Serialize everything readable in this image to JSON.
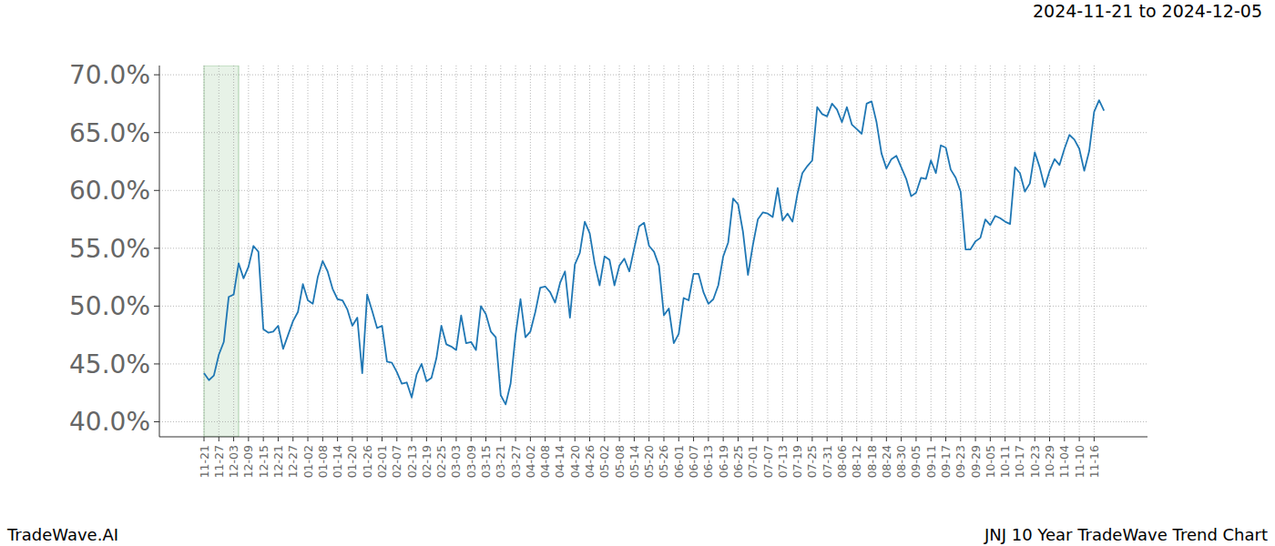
{
  "chart_data": {
    "type": "line",
    "title": "JNJ 10 Year TradeWave Trend Chart",
    "subtitle": "2024-11-21 to 2024-12-05",
    "source": "TradeWave.AI",
    "color": "#1f77b4",
    "grid": true,
    "highlight": [
      0,
      7
    ],
    "ylim": [
      38.7,
      70.8
    ],
    "yticks": [
      {
        "value": 40,
        "label": "40.0%"
      },
      {
        "value": 45,
        "label": "45.0%"
      },
      {
        "value": 50,
        "label": "50.0%"
      },
      {
        "value": 55,
        "label": "55.0%"
      },
      {
        "value": 60,
        "label": "60.0%"
      },
      {
        "value": 65,
        "label": "65.0%"
      },
      {
        "value": 70,
        "label": "70.0%"
      }
    ],
    "categories": [
      "11-21",
      null,
      null,
      "11-27",
      null,
      null,
      "12-03",
      null,
      null,
      "12-09",
      null,
      null,
      "12-15",
      null,
      null,
      "12-21",
      null,
      null,
      "12-27",
      null,
      null,
      "01-02",
      null,
      null,
      "01-08",
      null,
      null,
      "01-14",
      null,
      null,
      "01-20",
      null,
      null,
      "01-26",
      null,
      null,
      "02-01",
      null,
      null,
      "02-07",
      null,
      null,
      "02-13",
      null,
      null,
      "02-19",
      null,
      null,
      "02-25",
      null,
      null,
      "03-03",
      null,
      null,
      "03-09",
      null,
      null,
      "03-15",
      null,
      null,
      "03-21",
      null,
      null,
      "03-27",
      null,
      null,
      "04-02",
      null,
      null,
      "04-08",
      null,
      null,
      "04-14",
      null,
      null,
      "04-20",
      null,
      null,
      "04-26",
      null,
      null,
      "05-02",
      null,
      null,
      "05-08",
      null,
      null,
      "05-14",
      null,
      null,
      "05-20",
      null,
      null,
      "05-26",
      null,
      null,
      "06-01",
      null,
      null,
      "06-07",
      null,
      null,
      "06-13",
      null,
      null,
      "06-19",
      null,
      null,
      "06-25",
      null,
      null,
      "07-01",
      null,
      null,
      "07-07",
      null,
      null,
      "07-13",
      null,
      null,
      "07-19",
      null,
      null,
      "07-25",
      null,
      null,
      "07-31",
      null,
      null,
      "08-06",
      null,
      null,
      "08-12",
      null,
      null,
      "08-18",
      null,
      null,
      "08-24",
      null,
      null,
      "08-30",
      null,
      null,
      "09-05",
      null,
      null,
      "09-11",
      null,
      null,
      "09-17",
      null,
      null,
      "09-23",
      null,
      null,
      "09-29",
      null,
      null,
      "10-05",
      null,
      null,
      "10-11",
      null,
      null,
      "10-17",
      null,
      null,
      "10-23",
      null,
      null,
      "10-29",
      null,
      null,
      "11-04",
      null,
      null,
      "11-10",
      null,
      null,
      "11-16",
      null,
      null
    ],
    "values": [
      44.2,
      43.6,
      44.0,
      45.8,
      46.9,
      50.8,
      51.0,
      53.7,
      52.4,
      53.4,
      55.2,
      54.7,
      48.0,
      47.7,
      47.8,
      48.3,
      46.3,
      47.5,
      48.7,
      49.5,
      51.9,
      50.5,
      50.2,
      52.5,
      53.9,
      53.0,
      51.5,
      50.6,
      50.5,
      49.7,
      48.3,
      49.0,
      44.2,
      51.0,
      49.6,
      48.1,
      48.3,
      45.2,
      45.1,
      44.3,
      43.3,
      43.4,
      42.1,
      44.1,
      45.0,
      43.5,
      43.8,
      45.5,
      48.3,
      46.7,
      46.5,
      46.2,
      49.2,
      46.8,
      46.9,
      46.2,
      50.0,
      49.3,
      47.8,
      47.3,
      42.3,
      41.5,
      43.3,
      47.5,
      50.6,
      47.3,
      47.8,
      49.5,
      51.6,
      51.7,
      51.2,
      50.3,
      52.0,
      53.0,
      49.0,
      53.6,
      54.6,
      57.3,
      56.3,
      53.7,
      51.8,
      54.3,
      54.0,
      51.8,
      53.5,
      54.1,
      53.0,
      55.0,
      56.9,
      57.2,
      55.2,
      54.7,
      53.5,
      49.2,
      49.8,
      46.8,
      47.6,
      50.7,
      50.5,
      52.8,
      52.8,
      51.2,
      50.2,
      50.6,
      51.8,
      54.3,
      55.5,
      59.3,
      58.8,
      56.4,
      52.7,
      55.3,
      57.5,
      58.1,
      58.0,
      57.7,
      60.2,
      57.4,
      58.0,
      57.3,
      59.7,
      61.5,
      62.1,
      62.6,
      67.2,
      66.6,
      66.4,
      67.5,
      67.0,
      65.9,
      67.2,
      65.7,
      65.3,
      64.9,
      67.5,
      67.7,
      65.9,
      63.2,
      61.9,
      62.7,
      63.0,
      62.0,
      61.0,
      59.5,
      59.8,
      61.1,
      61.0,
      62.6,
      61.5,
      63.9,
      63.7,
      61.8,
      61.1,
      59.9,
      54.9,
      54.9,
      55.6,
      55.9,
      57.5,
      57.0,
      57.8,
      57.6,
      57.3,
      57.1,
      62.0,
      61.5,
      59.9,
      60.6,
      63.3,
      62.0,
      60.3,
      61.7,
      62.7,
      62.2,
      63.6,
      64.8,
      64.4,
      63.6,
      61.7,
      63.4,
      66.8,
      67.8,
      66.9
    ]
  }
}
